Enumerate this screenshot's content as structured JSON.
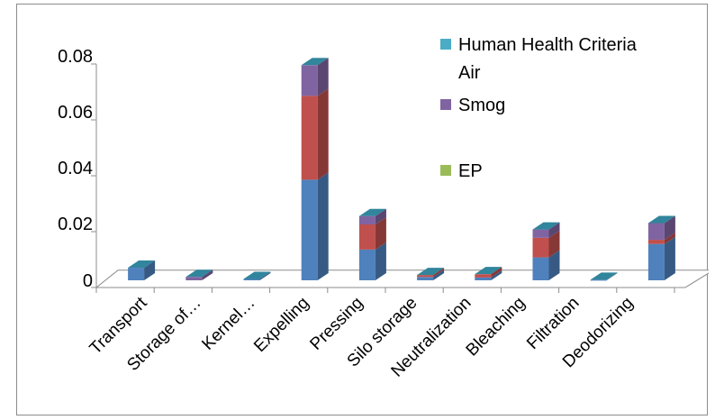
{
  "chart_data": {
    "type": "bar",
    "stacked": true,
    "three_d": true,
    "categories": [
      "Transport",
      "Storage of…",
      "Kernel…",
      "Expelling",
      "Pressing",
      "Silo storage",
      "Neutralization",
      "Bleaching",
      "Filtration",
      "Deodorizing"
    ],
    "series": [
      {
        "name": "",
        "color": "#4f81bd",
        "values": [
          0.0045,
          0.0,
          0.0005,
          0.036,
          0.011,
          0.0012,
          0.001,
          0.0082,
          0.0002,
          0.013
        ]
      },
      {
        "name": "",
        "color": "#c0504d",
        "values": [
          0.0,
          0.0,
          0.0,
          0.03,
          0.009,
          0.0007,
          0.0012,
          0.007,
          0.0,
          0.0015
        ]
      },
      {
        "name": "Smog",
        "color": "#8064a2",
        "values": [
          0.0,
          0.0012,
          0.0,
          0.011,
          0.003,
          0.0,
          0.0,
          0.003,
          0.0,
          0.006
        ]
      }
    ],
    "yticks": [
      "0",
      "0.02",
      "0.04",
      "0.06",
      "0.08"
    ],
    "ylim": [
      0,
      0.08
    ],
    "legend": [
      {
        "label_line1": "Human Health Criteria",
        "label_line2": "Air",
        "color": "#4bacc6"
      },
      {
        "label_line1": "Smog",
        "label_line2": "",
        "color": "#8064a2"
      },
      {
        "label_line1": "EP",
        "label_line2": "",
        "color": "#9bbb59"
      }
    ],
    "legend_position": "top-right",
    "grid": false
  }
}
